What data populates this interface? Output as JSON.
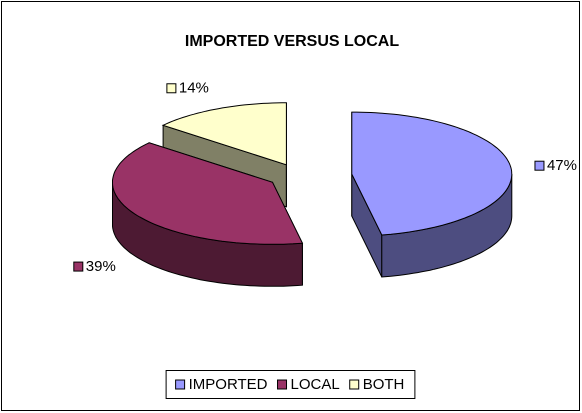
{
  "chart_data": {
    "type": "pie",
    "title": "IMPORTED VERSUS LOCAL",
    "categories": [
      "IMPORTED",
      "LOCAL",
      "BOTH"
    ],
    "values": [
      47,
      39,
      14
    ],
    "value_labels": [
      "47%",
      "39%",
      "14%"
    ],
    "colors": [
      "#9999FF",
      "#993366",
      "#FFFFCC"
    ],
    "legend": "bottom"
  }
}
